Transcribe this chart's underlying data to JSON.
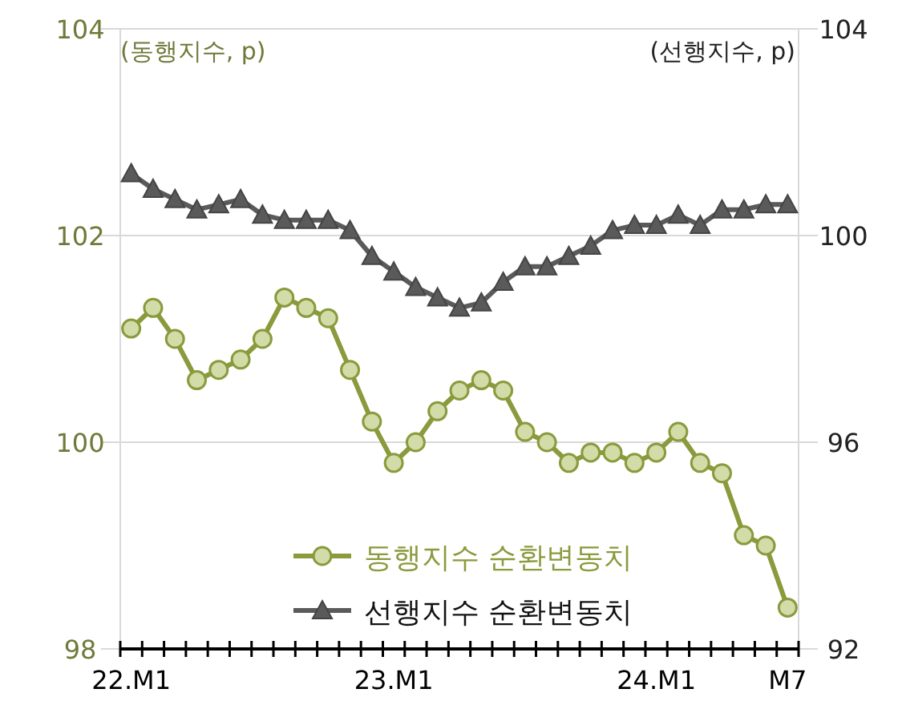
{
  "chart_data": {
    "type": "line",
    "ylabel": "(동행지수, p)",
    "y2label": "(선행지수, p)",
    "categories": [
      "22.M1",
      null,
      null,
      null,
      null,
      null,
      null,
      null,
      null,
      null,
      null,
      null,
      "23.M1",
      null,
      null,
      null,
      null,
      null,
      null,
      null,
      null,
      null,
      null,
      null,
      "24.M1",
      null,
      null,
      null,
      null,
      null,
      "M7"
    ],
    "series": [
      {
        "name": "동행지수 순환변동치",
        "color": "#8a9a3c",
        "marker": "circle",
        "values": [
          101.1,
          101.3,
          101.0,
          100.6,
          100.7,
          100.8,
          101.0,
          101.4,
          101.3,
          101.2,
          100.7,
          100.2,
          99.8,
          100.0,
          100.3,
          100.5,
          100.6,
          100.5,
          100.1,
          100.0,
          99.8,
          99.9,
          99.9,
          99.8,
          99.9,
          100.1,
          99.8,
          99.7,
          99.1,
          99.0,
          98.4
        ]
      },
      {
        "name": "선행지수 순환변동치",
        "color": "#5a5a5a",
        "marker": "triangle",
        "axis": "y2",
        "values": [
          101.2,
          100.9,
          100.7,
          100.5,
          100.6,
          100.7,
          100.4,
          100.3,
          100.3,
          100.3,
          100.1,
          99.6,
          99.3,
          99.0,
          98.8,
          98.6,
          98.7,
          99.1,
          99.4,
          99.4,
          99.6,
          99.8,
          100.1,
          100.2,
          100.2,
          100.4,
          100.2,
          100.5,
          100.5,
          100.6,
          100.6
        ]
      }
    ],
    "ylim": [
      98,
      104
    ],
    "yticks": [
      98,
      100,
      102,
      104
    ],
    "y2lim": [
      92,
      104
    ],
    "y2ticks": [
      92,
      96,
      100,
      104
    ],
    "grid": "y",
    "legend": "bottom left"
  }
}
